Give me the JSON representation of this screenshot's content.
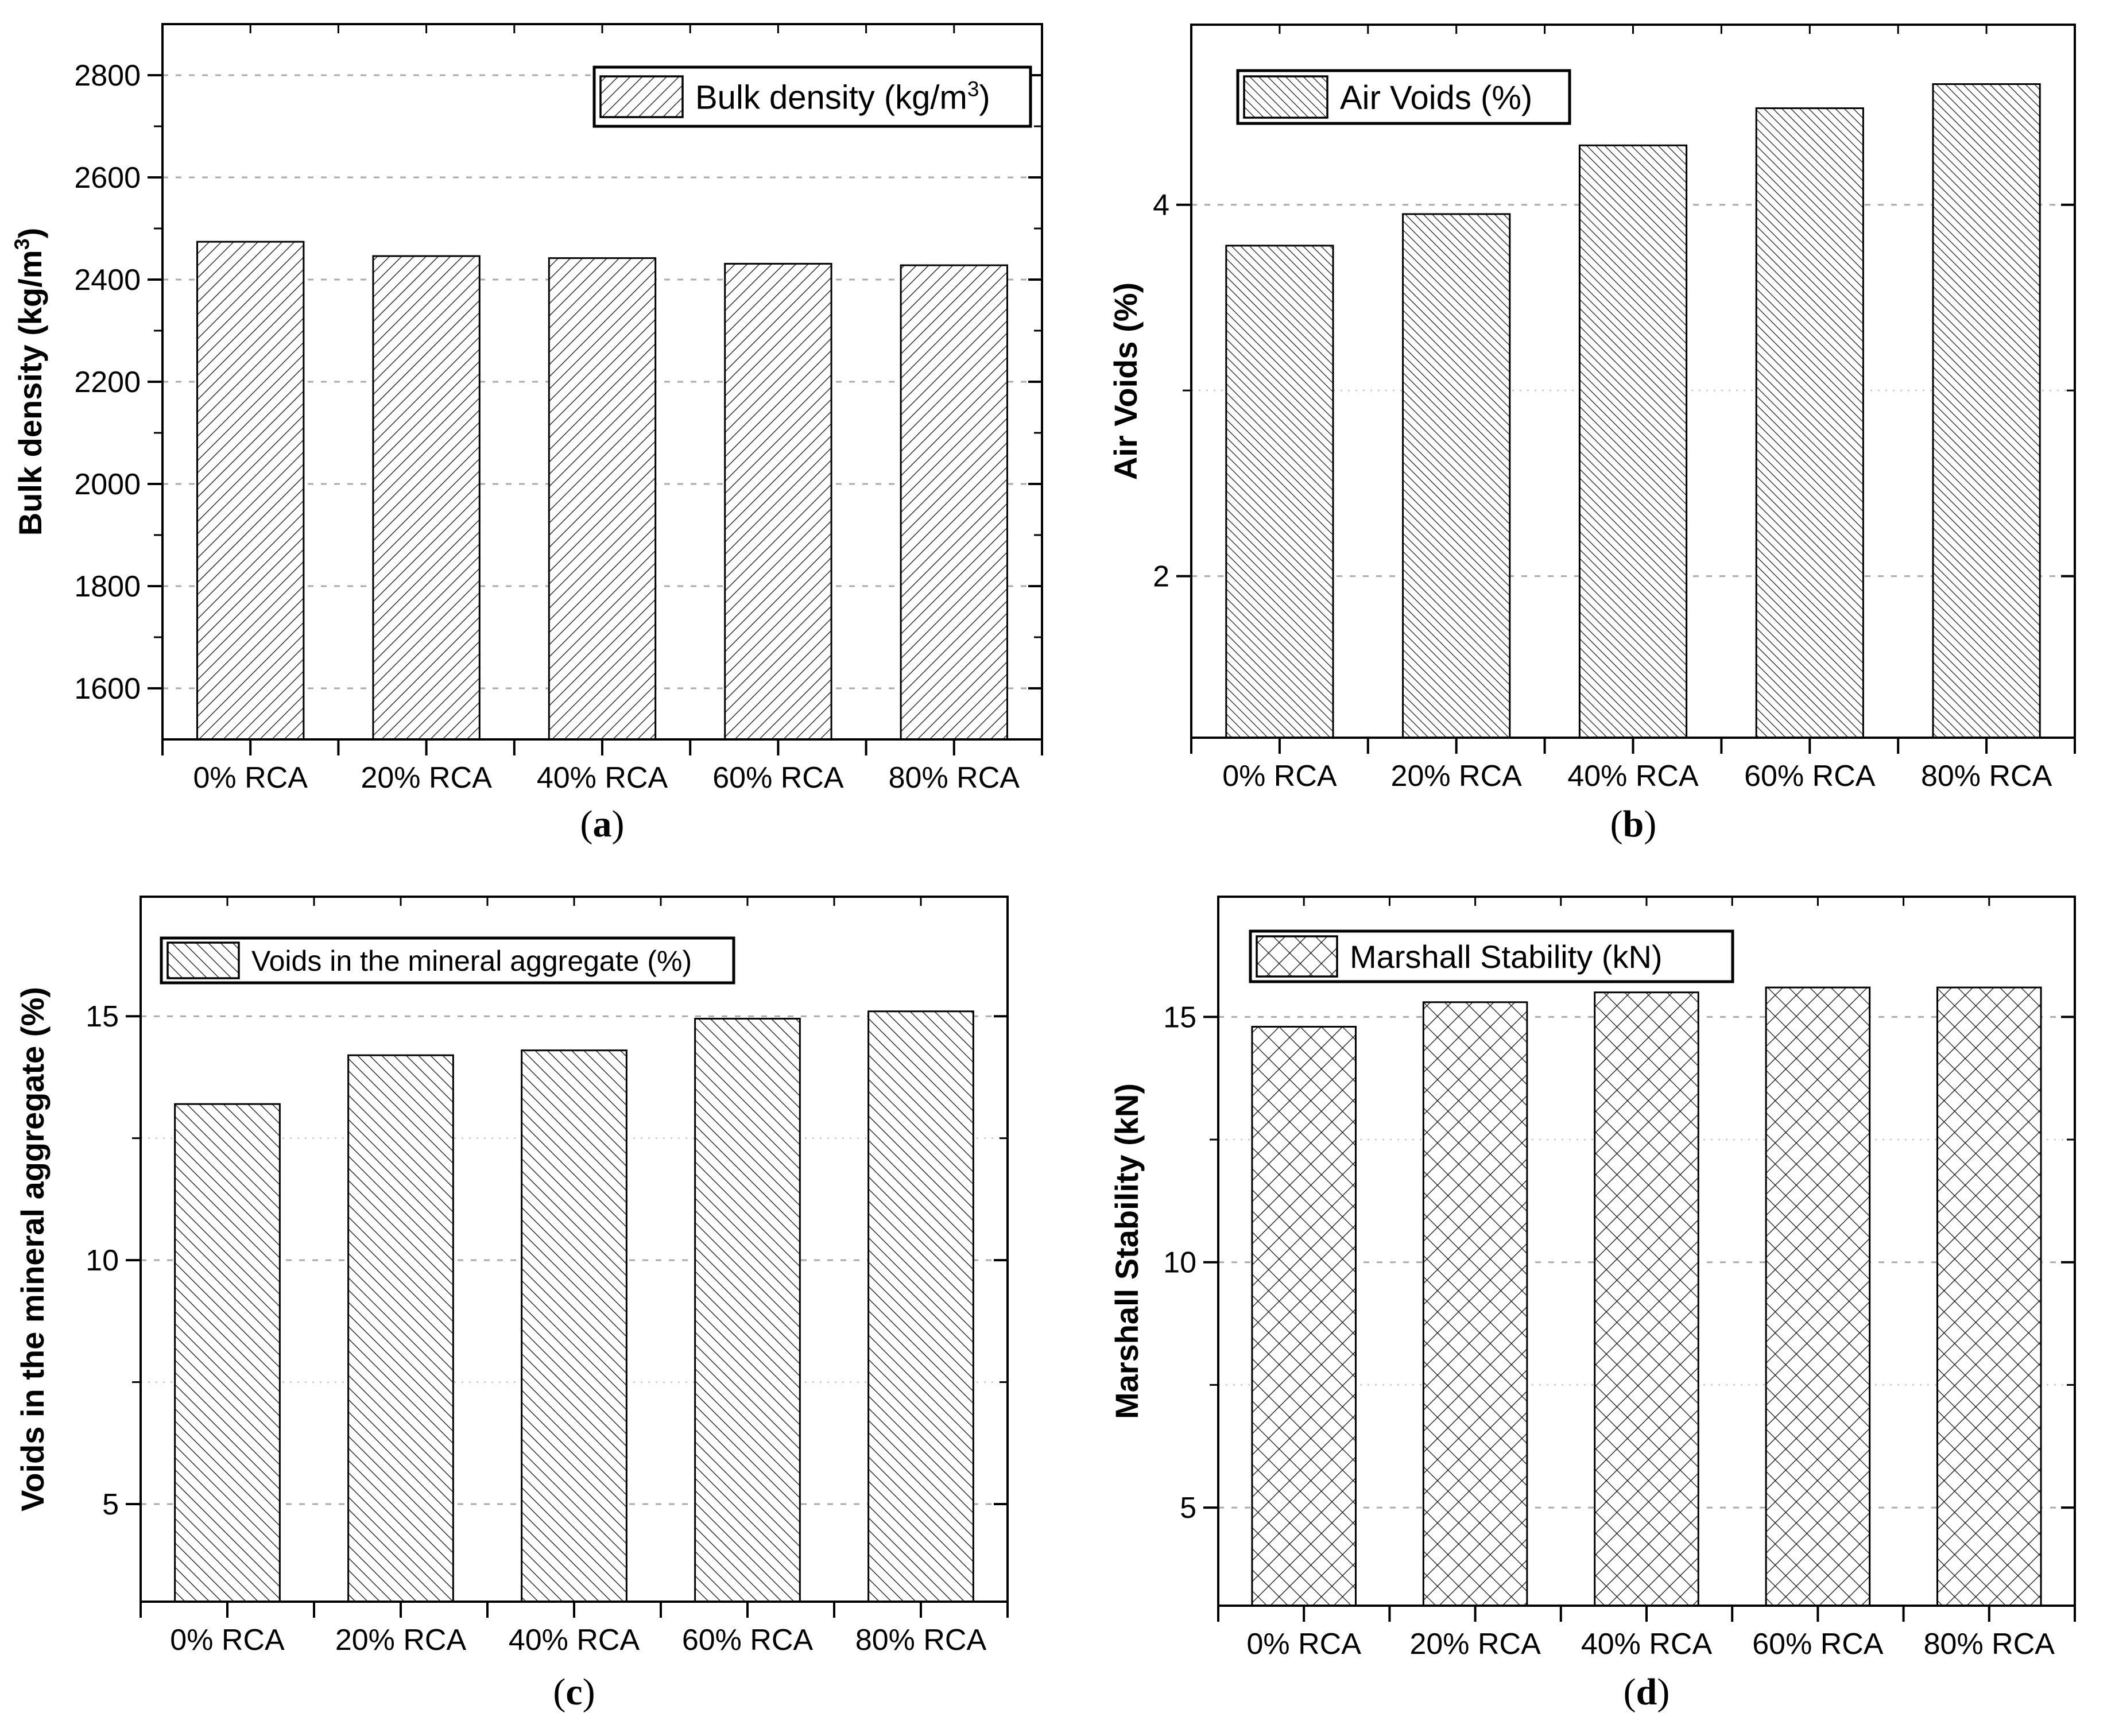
{
  "figure": {
    "panels": [
      {
        "id": "a",
        "caption": {
          "prefix": "(",
          "letter": "a",
          "suffix": ")"
        }
      },
      {
        "id": "b",
        "caption": {
          "prefix": "(",
          "letter": "b",
          "suffix": ")"
        }
      },
      {
        "id": "c",
        "caption": {
          "prefix": "(",
          "letter": "c",
          "suffix": ")"
        }
      },
      {
        "id": "d",
        "caption": {
          "prefix": "(",
          "letter": "d",
          "suffix": ")"
        }
      }
    ]
  },
  "chart_data": [
    {
      "id": "a",
      "type": "bar",
      "title": "",
      "xlabel": "",
      "ylabel": {
        "pre": "Bulk density (kg/m",
        "sup": "3",
        "post": ")"
      },
      "legend": {
        "pre": "Bulk density (kg/m",
        "sup": "3",
        "post": ")",
        "position": "top-right"
      },
      "categories": [
        "0% RCA",
        "20% RCA",
        "40% RCA",
        "60% RCA",
        "80% RCA"
      ],
      "values": [
        2474,
        2446,
        2442,
        2431,
        2428
      ],
      "ylim": [
        1500,
        2900
      ],
      "yticks": [
        1600,
        1800,
        2000,
        2200,
        2400,
        2600,
        2800
      ],
      "minor_yticks": [
        1700,
        1900,
        2100,
        2300,
        2500,
        2700
      ],
      "grid": {
        "major": true,
        "minor": false
      },
      "hatch": "forward-diagonal"
    },
    {
      "id": "b",
      "type": "bar",
      "title": "",
      "xlabel": "",
      "ylabel": {
        "pre": "Air Voids (%)",
        "sup": "",
        "post": ""
      },
      "legend": {
        "pre": "Air Voids (%)",
        "sup": "",
        "post": "",
        "position": "top-left"
      },
      "categories": [
        "0% RCA",
        "20% RCA",
        "40% RCA",
        "60% RCA",
        "80% RCA"
      ],
      "values": [
        3.78,
        3.95,
        4.32,
        4.52,
        4.65
      ],
      "ylim": [
        1.13,
        4.97
      ],
      "yticks": [
        2,
        4
      ],
      "minor_yticks": [
        3
      ],
      "grid": {
        "major": true,
        "minor": true
      },
      "hatch": "backward-diagonal"
    },
    {
      "id": "c",
      "type": "bar",
      "title": "",
      "xlabel": "",
      "ylabel": {
        "pre": "Voids in the mineral aggregate (%)",
        "sup": "",
        "post": ""
      },
      "legend": {
        "pre": "Voids in the mineral aggregate (%)",
        "sup": "",
        "post": "",
        "position": "top-left"
      },
      "categories": [
        "0% RCA",
        "20% RCA",
        "40% RCA",
        "60% RCA",
        "80% RCA"
      ],
      "values": [
        13.2,
        14.2,
        14.3,
        14.95,
        15.1
      ],
      "ylim": [
        3.0,
        17.45
      ],
      "yticks": [
        5,
        10,
        15
      ],
      "minor_yticks": [
        7.5,
        12.5
      ],
      "grid": {
        "major": true,
        "minor": true
      },
      "hatch": "backward-diagonal"
    },
    {
      "id": "d",
      "type": "bar",
      "title": "",
      "xlabel": "",
      "ylabel": {
        "pre": "Marshall Stability (kN)",
        "sup": "",
        "post": ""
      },
      "legend": {
        "pre": "Marshall Stability (kN)",
        "sup": "",
        "post": "",
        "position": "top-left"
      },
      "categories": [
        "0% RCA",
        "20% RCA",
        "40% RCA",
        "60% RCA",
        "80% RCA"
      ],
      "values": [
        14.8,
        15.3,
        15.5,
        15.6,
        15.6
      ],
      "ylim": [
        3.0,
        17.45
      ],
      "yticks": [
        5,
        10,
        15
      ],
      "minor_yticks": [
        7.5,
        12.5
      ],
      "grid": {
        "major": true,
        "minor": true
      },
      "hatch": "cross-diagonal"
    }
  ],
  "colors": {
    "background": "#ffffff",
    "bar_fill": "#ffffff",
    "bar_edge": "#000000",
    "hatch_line": "#111111",
    "major_grid": "#ababab",
    "minor_grid": "#c8c8c8",
    "axis": "#000000",
    "text": "#000000"
  }
}
